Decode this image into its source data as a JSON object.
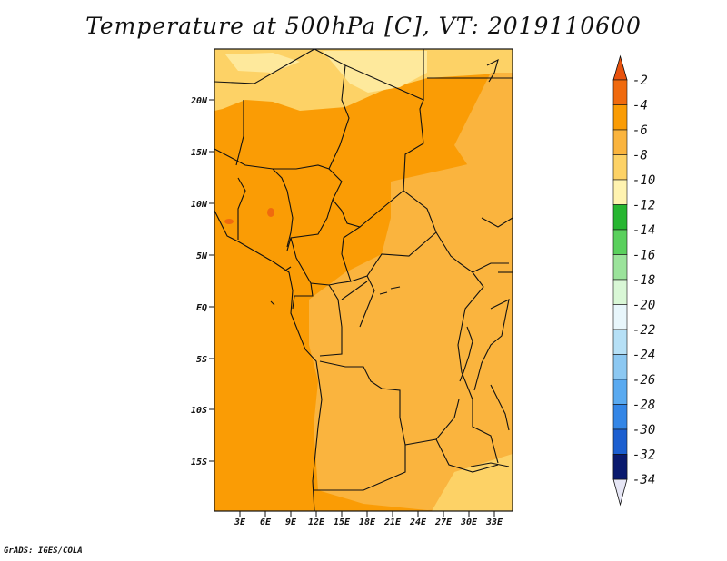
{
  "title": "Temperature at 500hPa [C], VT: 2019110600",
  "credit": "GrADS: IGES/COLA",
  "map": {
    "lat_labels": [
      "20N",
      "15N",
      "10N",
      "5N",
      "EQ",
      "5S",
      "10S",
      "15S"
    ],
    "lon_labels": [
      "3E",
      "6E",
      "9E",
      "12E",
      "15E",
      "18E",
      "21E",
      "24E",
      "27E",
      "30E",
      "33E"
    ],
    "fill_colors": {
      "m4_6": "#fa9c05",
      "m6_8": "#fab43e",
      "m8_10": "#fdd266",
      "m10_12": "#fee99c",
      "m2_4": "#f06a0e"
    }
  },
  "colorbar": {
    "labels": [
      "-2",
      "-4",
      "-6",
      "-8",
      "-10",
      "-12",
      "-14",
      "-16",
      "-18",
      "-20",
      "-22",
      "-24",
      "-26",
      "-28",
      "-30",
      "-32",
      "-34"
    ],
    "colors": [
      "#e8520d",
      "#f67f05",
      "#fba10e",
      "#fbbf46",
      "#fddf7c",
      "#fff7bd",
      "#27b631",
      "#5ad05d",
      "#9be39b",
      "#d9f7d6",
      "#e8f6fb",
      "#b6e0f6",
      "#8cc8f2",
      "#5aaaf0",
      "#3486e6",
      "#1c5fd0",
      "#0b3ba6",
      "#0a1a6e",
      "#e6e6f5"
    ]
  }
}
